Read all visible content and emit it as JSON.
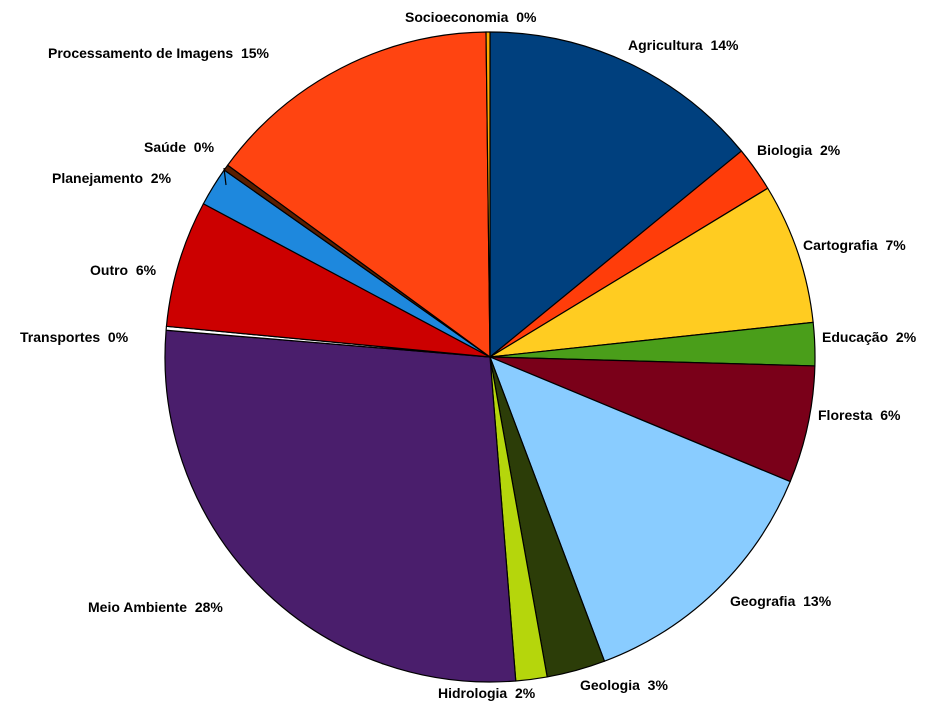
{
  "chart_data": {
    "type": "pie",
    "title": "",
    "slices": [
      {
        "label": "Agricultura",
        "display": "Agricultura  14%",
        "value": 14.5,
        "color": "#00407E"
      },
      {
        "label": "Biologia",
        "display": "Biologia  2%",
        "value": 2.3,
        "color": "#FF3D0A"
      },
      {
        "label": "Cartografia",
        "display": "Cartografia  7%",
        "value": 7.2,
        "color": "#FFCC21"
      },
      {
        "label": "Educação",
        "display": "Educação  2%",
        "value": 2.2,
        "color": "#4A9E1A"
      },
      {
        "label": "Floresta",
        "display": "Floresta  6%",
        "value": 6.0,
        "color": "#7A0019"
      },
      {
        "label": "Geografia",
        "display": "Geografia  13%",
        "value": 13.4,
        "color": "#89CCFF"
      },
      {
        "label": "Geologia",
        "display": "Geologia  3%",
        "value": 3.0,
        "color": "#2C3D08"
      },
      {
        "label": "Hidrologia",
        "display": "Hidrologia  2%",
        "value": 1.6,
        "color": "#B5D60C"
      },
      {
        "label": "Meio Ambiente",
        "display": "Meio Ambiente  28%",
        "value": 28.4,
        "color": "#4A1E6C"
      },
      {
        "label": "Transportes",
        "display": "Transportes  0%",
        "value": 0.2,
        "color": "#FFFFFF"
      },
      {
        "label": "Outro",
        "display": "Outro  6%",
        "value": 6.5,
        "color": "#CC0000"
      },
      {
        "label": "Planejamento",
        "display": "Planejamento  2%",
        "value": 2.0,
        "color": "#1E88DD"
      },
      {
        "label": "Saúde",
        "display": "Saúde  0%",
        "value": 0.3,
        "color": "#5A1E00"
      },
      {
        "label": "Processamento de Imagens",
        "display": "Processamento de Imagens  15%",
        "value": 15.2,
        "color": "#FF4411"
      },
      {
        "label": "Socioeconomia",
        "display": "Socioeconomia  0%",
        "value": 0.2,
        "color": "#FFAA00"
      }
    ],
    "start": "12 o'clock",
    "direction": "clockwise",
    "legend": "none"
  }
}
